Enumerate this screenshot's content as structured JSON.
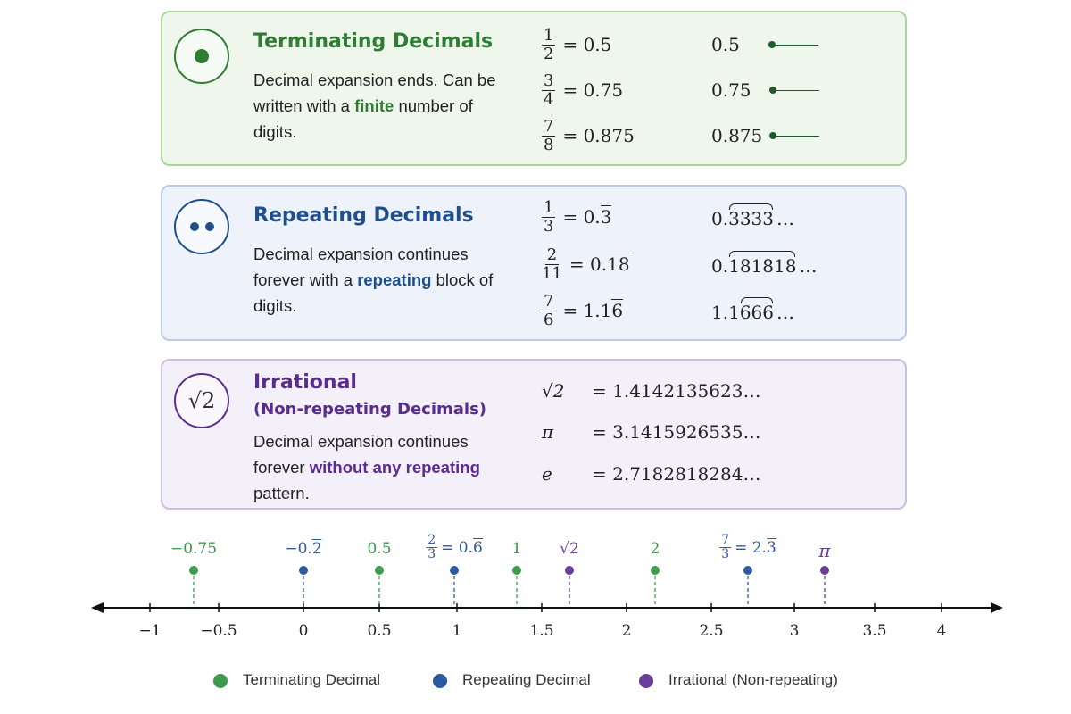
{
  "colors": {
    "terminating": "#3e9a4c",
    "repeating": "#2b5aa0",
    "irrational": "#6a3d9a"
  },
  "terminating": {
    "title": "Terminating Decimals",
    "description": {
      "before": "Decimal expansion ends. Can be written with a ",
      "highlight": "finite",
      "after": " number of digits."
    },
    "rows": [
      {
        "numerator": "1",
        "denominator": "2",
        "decimal": "= 0.5",
        "expansion": "0.5"
      },
      {
        "numerator": "3",
        "denominator": "4",
        "decimal": "= 0.75",
        "expansion": "0.75"
      },
      {
        "numerator": "7",
        "denominator": "8",
        "decimal": "= 0.875",
        "expansion": "0.875"
      }
    ]
  },
  "repeating": {
    "title": "Repeating Decimals",
    "description": {
      "before": "Decimal expansion continues forever with a ",
      "highlight": "repeating",
      "after": " block of digits."
    },
    "rows": [
      {
        "numerator": "1",
        "denominator": "3",
        "decimal_prefix": "= 0.",
        "decimal_repeat": "3",
        "expansion_lead": "0.",
        "expansion_braced": "3333",
        "expansion_tail": "…"
      },
      {
        "numerator": "2",
        "denominator": "11",
        "decimal_prefix": "= 0.",
        "decimal_repeat": "18",
        "expansion_lead": "0.",
        "expansion_braced": "181818",
        "expansion_tail": "…"
      },
      {
        "numerator": "7",
        "denominator": "6",
        "decimal_prefix": "= 1.1",
        "decimal_repeat": "6",
        "expansion_lead": "1.1",
        "expansion_braced": "666",
        "expansion_tail": "…"
      }
    ]
  },
  "irrational": {
    "title": "Irrational",
    "subtitle": "(Non-repeating Decimals)",
    "icon": "√2",
    "description": {
      "before": "Decimal expansion continues forever ",
      "highlight": "without any repeating",
      "after": " pattern."
    },
    "rows": [
      {
        "symbol": "√2",
        "value": "= 1.4142135623…"
      },
      {
        "symbol": "π",
        "value": "= 3.1415926535…"
      },
      {
        "symbol": "e",
        "value": "= 2.7182818284…"
      }
    ]
  },
  "number_line": {
    "ticks": [
      "−1",
      "−0.5",
      "0",
      "0.5",
      "1",
      "1.5",
      "2",
      "2.5",
      "3",
      "3.5",
      "4"
    ],
    "points": [
      {
        "kind": "terminating",
        "label": "−0.75"
      },
      {
        "kind": "repeating",
        "prefix": "−0.",
        "repeat": "2"
      },
      {
        "kind": "terminating",
        "label": "0.5"
      },
      {
        "kind": "repeating",
        "numerator": "2",
        "denominator": "3",
        "prefix": "= 0.",
        "repeat": "6"
      },
      {
        "kind": "terminating",
        "label": "1"
      },
      {
        "kind": "irrational",
        "label": "√2"
      },
      {
        "kind": "terminating",
        "label": "2"
      },
      {
        "kind": "repeating",
        "numerator": "7",
        "denominator": "3",
        "prefix": "= 2.",
        "repeat": "3"
      },
      {
        "kind": "irrational",
        "label": "π"
      }
    ]
  },
  "legend": [
    {
      "kind": "terminating",
      "label": "Terminating Decimal"
    },
    {
      "kind": "repeating",
      "label": "Repeating Decimal"
    },
    {
      "kind": "irrational",
      "label": "Irrational (Non-repeating)"
    }
  ]
}
